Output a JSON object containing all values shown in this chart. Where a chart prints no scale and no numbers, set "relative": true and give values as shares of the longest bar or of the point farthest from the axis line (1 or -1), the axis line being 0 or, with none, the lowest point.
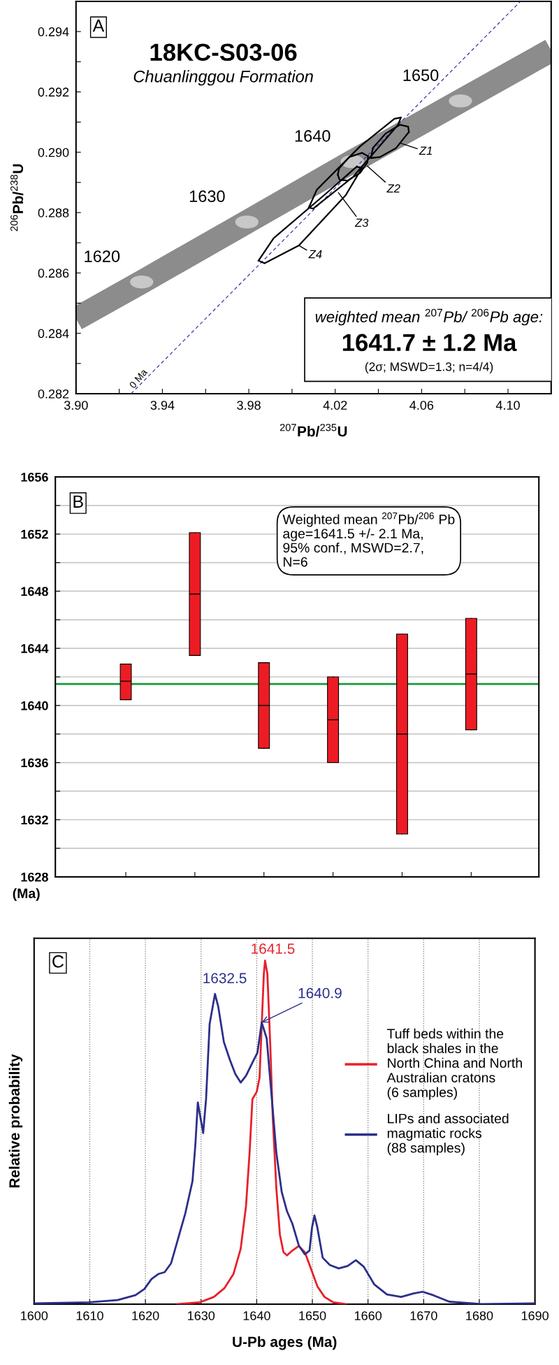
{
  "chart_data": [
    {
      "type": "line",
      "title": "18KC-S03-06",
      "subtitle": "Chuanlinggou Formation",
      "xlabel": "$^{207}$Pb/$^{235}$U",
      "ylabel": "$^{206}$Pb/$^{238}$U",
      "xlim": [
        3.9,
        4.12
      ],
      "ylim": [
        0.282,
        0.295
      ],
      "xticks": [
        {
          "value": 3.9,
          "label": "3.90"
        },
        {
          "value": 3.92,
          "label": null
        },
        {
          "value": 3.94,
          "label": "3.94"
        },
        {
          "value": 3.96,
          "label": null
        },
        {
          "value": 3.98,
          "label": "3.98"
        },
        {
          "value": 4.0,
          "label": null
        },
        {
          "value": 4.02,
          "label": "4.02"
        },
        {
          "value": 4.04,
          "label": null
        },
        {
          "value": 4.06,
          "label": "4.06"
        },
        {
          "value": 4.08,
          "label": null
        },
        {
          "value": 4.1,
          "label": "4.10"
        }
      ],
      "yticks": [
        0.282,
        {
          "value": 0.283,
          "label": null
        },
        0.284,
        {
          "value": 0.285,
          "label": null
        },
        0.286,
        {
          "value": 0.287,
          "label": null
        },
        0.288,
        {
          "value": 0.289,
          "label": null
        },
        {
          "value": 0.29,
          "label": "0.290"
        },
        {
          "value": 0.291,
          "label": null
        },
        0.292,
        {
          "value": 0.293,
          "label": null
        },
        0.294
      ],
      "series": [
        {
          "type": "line",
          "color": "#8c8c8c",
          "x": [
            3.9,
            3.9304,
            3.9791,
            4.0279,
            4.078,
            4.12
          ],
          "values": [
            0.28448,
            0.2857,
            0.28769,
            0.28969,
            0.2917,
            0.29338
          ]
        },
        {
          "type": "scatter",
          "color": "#c8c8c8",
          "marker": "circle",
          "x": [
            3.9304,
            3.9791,
            4.0279,
            4.078
          ],
          "values": [
            0.2857,
            0.28769,
            0.28969,
            0.2917
          ]
        },
        {
          "type": "line",
          "color": "#3a3a9a",
          "line_style": "dashed",
          "x": [
            3.9255,
            4.1058
          ],
          "values": [
            0.282,
            0.295
          ]
        },
        {
          "type": "line",
          "color": "#000000",
          "x": [
            4.0366,
            4.0374,
            4.0432,
            4.0499,
            4.0538,
            4.0541
          ],
          "values": [
            0.28981,
            0.29014,
            0.29061,
            0.29091,
            0.29085,
            0.29067
          ]
        },
        {
          "type": "line",
          "color": "#000000",
          "x": [
            4.0366,
            4.0407,
            4.0482,
            4.0541
          ],
          "values": [
            0.28981,
            0.28984,
            0.29014,
            0.29067
          ]
        },
        {
          "type": "line",
          "color": "#000000",
          "x": [
            4.0212,
            4.0218,
            4.0265,
            4.0324,
            4.0352
          ],
          "values": [
            0.28926,
            0.28946,
            0.28984,
            0.28998,
            0.28987
          ]
        },
        {
          "type": "line",
          "color": "#000000",
          "x": [
            4.0212,
            4.022,
            4.0257,
            4.0316,
            4.0349,
            4.0352
          ],
          "values": [
            0.28926,
            0.28909,
            0.28906,
            0.28932,
            0.28966,
            0.28987
          ]
        },
        {
          "type": "line",
          "color": "#000000",
          "x": [
            4.0078,
            4.0115,
            4.0316,
            4.0474,
            4.0504
          ],
          "values": [
            0.28817,
            0.28876,
            0.2902,
            0.29111,
            0.29115
          ]
        },
        {
          "type": "line",
          "color": "#000000",
          "x": [
            4.0078,
            4.0098,
            4.0282,
            4.0491,
            4.0504
          ],
          "values": [
            0.28817,
            0.28813,
            0.28918,
            0.29091,
            0.29115
          ]
        },
        {
          "type": "line",
          "color": "#000000",
          "x": [
            3.9845,
            3.9915,
            4.0149,
            4.0299,
            4.0324
          ],
          "values": [
            0.28641,
            0.28715,
            0.28858,
            0.28952,
            0.28948
          ]
        },
        {
          "type": "line",
          "color": "#000000",
          "x": [
            3.9845,
            3.9873,
            4.0032,
            4.0249,
            4.0324
          ],
          "values": [
            0.28641,
            0.28632,
            0.28691,
            0.28858,
            0.28948
          ]
        }
      ],
      "annotations": [
        "A",
        {
          "text": "1620",
          "x": 3.9304,
          "y": 0.2857
        },
        {
          "text": "1630",
          "x": 3.9791,
          "y": 0.28769
        },
        {
          "text": "1640",
          "x": 4.0279,
          "y": 0.28969
        },
        {
          "text": "1650",
          "x": 4.078,
          "y": 0.2917
        },
        {
          "text": "0 Ma",
          "x": 3.93,
          "y": 0.28232
        },
        {
          "text": "Z1",
          "x": 4.0499,
          "y": 0.29031
        },
        {
          "text": "Z2",
          "x": 4.0349,
          "y": 0.28954
        },
        {
          "text": "Z3",
          "x": 4.0215,
          "y": 0.28866
        },
        {
          "text": "Z4",
          "x": 4.0032,
          "y": 0.28691
        },
        "weighted mean $^{207}$Pb/ $^{206}$Pb age:",
        "1641.7 ± 1.2 Ma",
        "(2σ; MSWD=1.3; n=4/4)"
      ]
    },
    {
      "type": "box",
      "categories": [
        null,
        null,
        null,
        null,
        null,
        null
      ],
      "ylabel": "(Ma)",
      "ylim": [
        1628,
        1656
      ],
      "yticks": [
        1628,
        {
          "value": 1630,
          "label": null
        },
        1632,
        {
          "value": 1634,
          "label": null
        },
        1636,
        {
          "value": 1638,
          "label": null
        },
        1640,
        {
          "value": 1642,
          "label": null
        },
        1644,
        {
          "value": 1646,
          "label": null
        },
        1648,
        {
          "value": 1650,
          "label": null
        },
        1652,
        {
          "value": 1654,
          "label": null
        },
        1656
      ],
      "grid": "y",
      "tick_labels": "y",
      "series": [
        {
          "color": "#ed1c24",
          "boxes": [
            {
              "low": 1640.4,
              "q1": 1640.4,
              "median": 1641.7,
              "q3": 1642.9,
              "high": 1642.9
            },
            {
              "low": 1643.5,
              "q1": 1643.5,
              "median": 1647.8,
              "q3": 1652.1,
              "high": 1652.1
            },
            {
              "low": 1637.0,
              "q1": 1637.0,
              "median": 1640.0,
              "q3": 1643.0,
              "high": 1643.0
            },
            {
              "low": 1636.0,
              "q1": 1636.0,
              "median": 1639.0,
              "q3": 1642.0,
              "high": 1642.0
            },
            {
              "low": 1631.0,
              "q1": 1631.0,
              "median": 1638.0,
              "q3": 1645.0,
              "high": 1645.0
            },
            {
              "low": 1638.3,
              "q1": 1638.3,
              "median": 1642.2,
              "q3": 1646.1,
              "high": 1646.1
            }
          ]
        }
      ],
      "ref_lines": [
        {
          "axis": "y",
          "value": 1641.5,
          "color": "#1a9a3a"
        }
      ],
      "annotations": [
        "B",
        "Weighted mean $^{207}$Pb/$^{206}$ Pb\nage=1641.5 +/- 2.1 Ma,\n95% conf., MSWD=2.7,\nN=6"
      ]
    },
    {
      "type": "line",
      "relative": true,
      "xlabel": "U-Pb ages (Ma)",
      "ylabel": "Relative probability",
      "xlim": [
        1600,
        1690
      ],
      "xticks": [
        1600,
        1610,
        1620,
        1630,
        1640,
        1650,
        1660,
        1670,
        1680,
        1690
      ],
      "grid": "x",
      "legend": "right",
      "series": [
        {
          "name": "Tuff beds within the\nblack shales in the\nNorth China and North\nAustralian cratons\n(6 samples)",
          "color": "#e8202a",
          "x": [
            1625.77,
            1629.74,
            1632.31,
            1634.23,
            1635.83,
            1637.12,
            1638.08,
            1638.72,
            1639.23,
            1640.0,
            1640.51,
            1640.96,
            1641.28,
            1641.5,
            1641.92,
            1642.44,
            1642.88,
            1643.53,
            1644.17,
            1644.81,
            1645.45,
            1646.41,
            1647.56,
            1648.65,
            1649.62,
            1650.9,
            1652.18,
            1653.78,
            1656.03
          ],
          "values": [
            0,
            0.005,
            0.021,
            0.047,
            0.088,
            0.161,
            0.286,
            0.441,
            0.597,
            0.618,
            0.659,
            0.836,
            0.961,
            1.0,
            0.961,
            0.753,
            0.545,
            0.337,
            0.202,
            0.151,
            0.142,
            0.156,
            0.169,
            0.151,
            0.109,
            0.052,
            0.021,
            0.005,
            0
          ]
        },
        {
          "name": "LIPs and associated\nmagmatic rocks\n(88 samples)",
          "color": "#2b2f8a",
          "x": [
            1600,
            1609.87,
            1615.0,
            1618.21,
            1619.81,
            1621.09,
            1622.37,
            1623.46,
            1624.62,
            1625.9,
            1627.18,
            1628.46,
            1628.97,
            1629.42,
            1629.87,
            1630.38,
            1630.9,
            1631.54,
            1632.5,
            1633.08,
            1634.1,
            1635.19,
            1636.15,
            1637.12,
            1638.08,
            1639.23,
            1640.13,
            1640.9,
            1641.79,
            1642.56,
            1643.53,
            1644.49,
            1645.45,
            1646.41,
            1647.56,
            1648.65,
            1649.49,
            1649.94,
            1650.38,
            1650.9,
            1651.86,
            1653.14,
            1654.74,
            1656.35,
            1657.82,
            1659.23,
            1661.15,
            1663.4,
            1665.96,
            1668.21,
            1669.81,
            1671.73,
            1674.62,
            1680.38,
            1690
          ],
          "values": [
            0.002,
            0.005,
            0.012,
            0.026,
            0.044,
            0.073,
            0.088,
            0.093,
            0.119,
            0.192,
            0.265,
            0.358,
            0.462,
            0.587,
            0.545,
            0.498,
            0.597,
            0.815,
            0.903,
            0.867,
            0.763,
            0.711,
            0.67,
            0.645,
            0.665,
            0.703,
            0.732,
            0.82,
            0.774,
            0.628,
            0.441,
            0.327,
            0.27,
            0.234,
            0.171,
            0.145,
            0.156,
            0.223,
            0.258,
            0.223,
            0.135,
            0.114,
            0.104,
            0.111,
            0.128,
            0.109,
            0.057,
            0.028,
            0.021,
            0.031,
            0.036,
            0.026,
            0.007,
            0,
            0.002
          ]
        }
      ],
      "annotations": [
        "C",
        {
          "text": "1641.5",
          "x": 1641.5,
          "y": 1.0
        },
        {
          "text": "1632.5",
          "x": 1632.5,
          "y": 0.903
        },
        {
          "text": "1640.9",
          "x": 1640.9,
          "y": 0.82
        }
      ]
    }
  ]
}
